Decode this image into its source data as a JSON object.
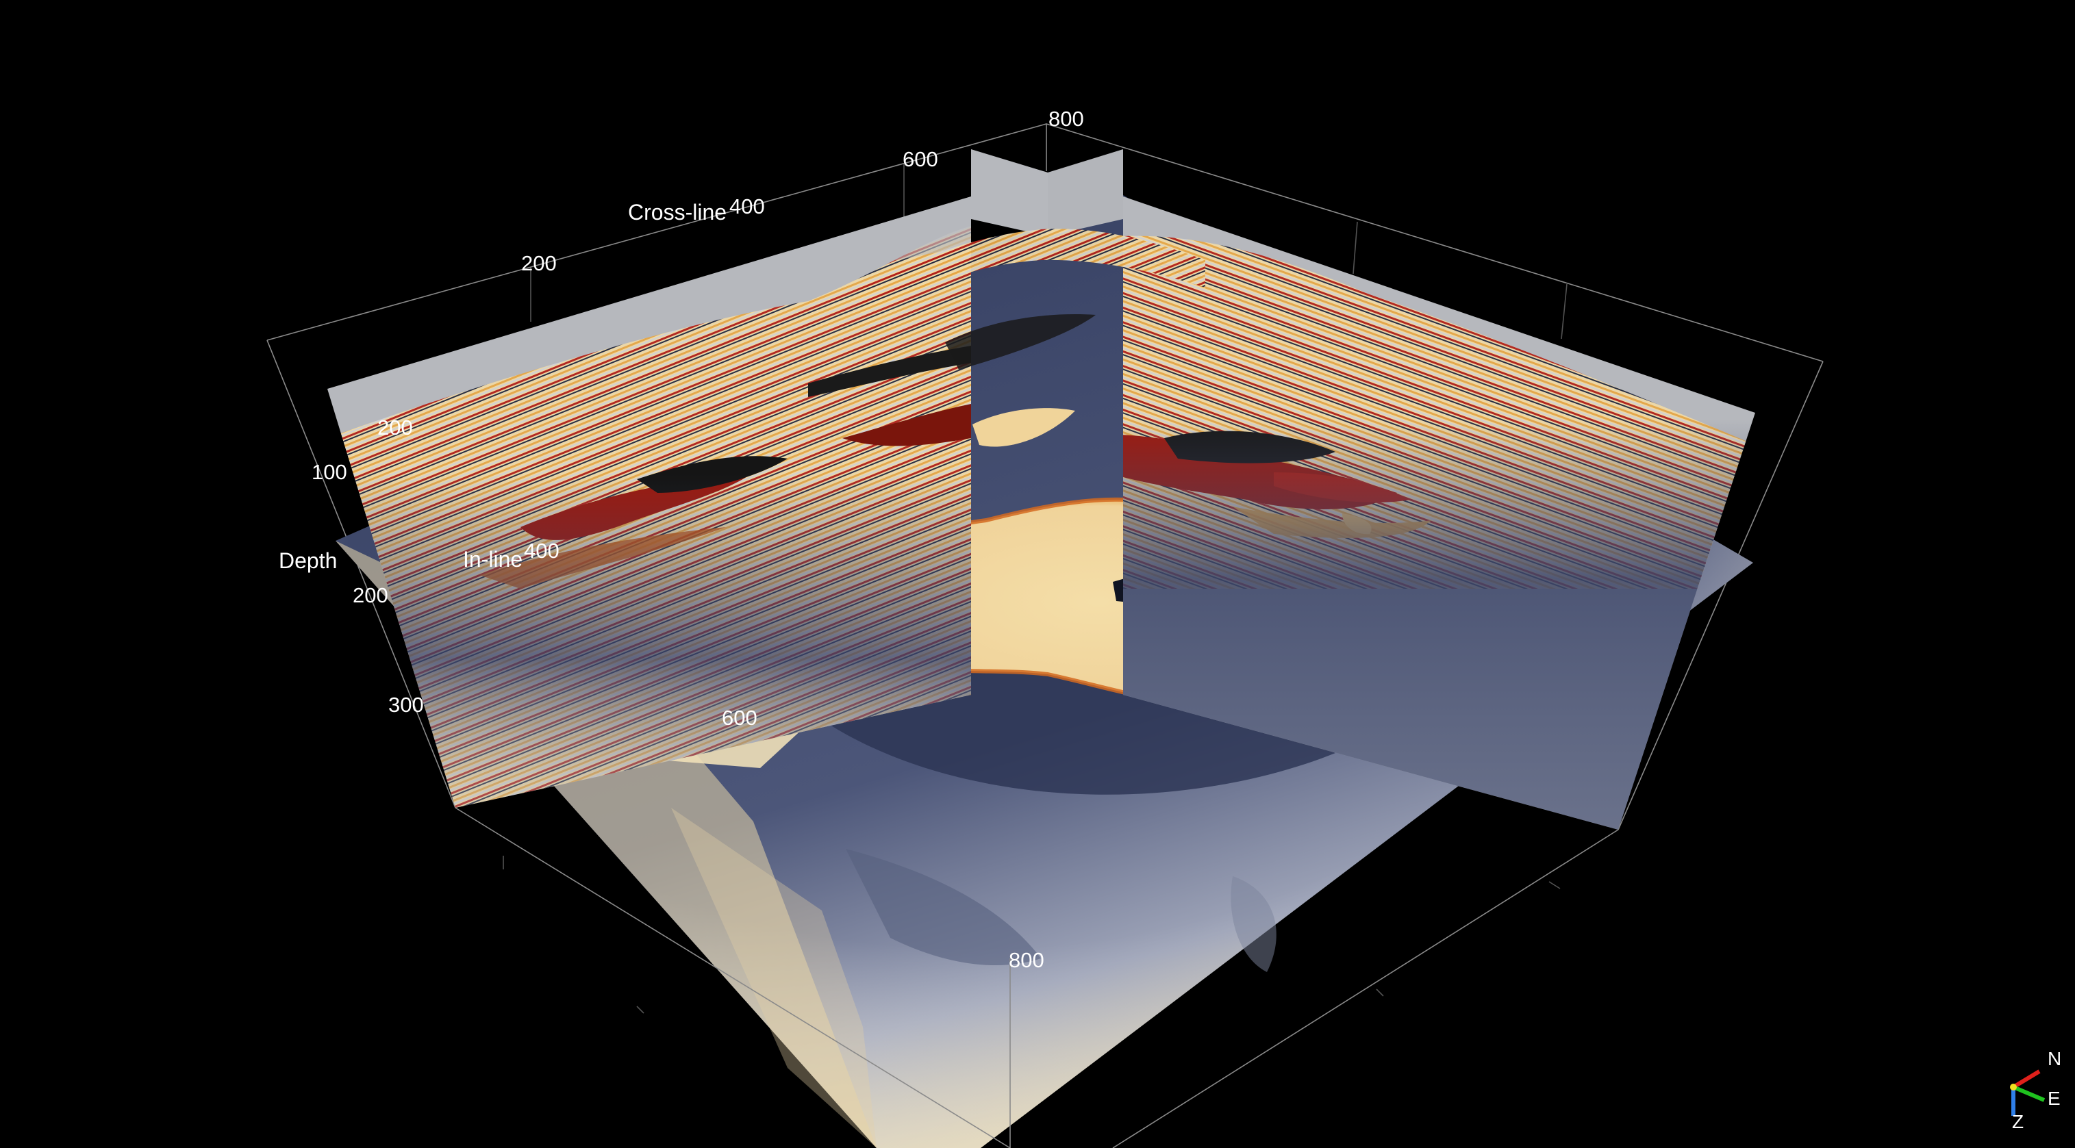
{
  "viewer": {
    "axes": {
      "crossline": {
        "title": "Cross-line",
        "ticks": [
          "200",
          "400",
          "600",
          "800"
        ]
      },
      "inline": {
        "title": "In-line",
        "ticks": [
          "200",
          "400",
          "600",
          "800"
        ]
      },
      "depth": {
        "title": "Depth",
        "ticks": [
          "100",
          "200",
          "300"
        ]
      }
    },
    "orientation": {
      "north": "N",
      "east": "E",
      "down": "Z",
      "colors": {
        "north": "#e0201b",
        "east": "#1fc21f",
        "down": "#2f7fe8",
        "origin": "#f0e020"
      }
    },
    "colormap": {
      "name": "seismic",
      "stops": [
        "#2a3356",
        "#55607e",
        "#c9cbd2",
        "#f1d9a4",
        "#e8a43a",
        "#b31b0c",
        "#5a0a06",
        "#101010"
      ]
    }
  }
}
